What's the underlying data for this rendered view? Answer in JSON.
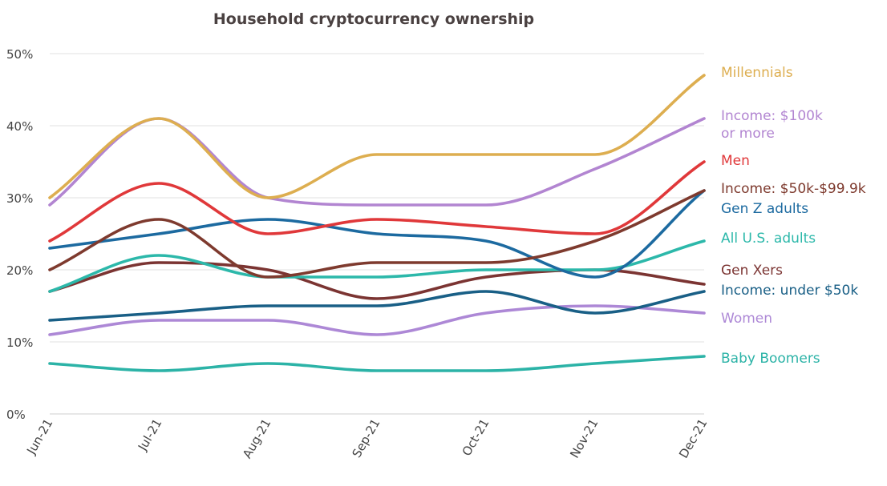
{
  "chart_data": {
    "type": "line",
    "title": "Household cryptocurrency ownership",
    "xlabel": "",
    "ylabel": "",
    "categories": [
      "Jun-21",
      "Jul-21",
      "Aug-21",
      "Sep-21",
      "Oct-21",
      "Nov-21",
      "Dec-21"
    ],
    "y_ticks": [
      "0%",
      "10%",
      "20%",
      "30%",
      "40%",
      "50%"
    ],
    "ylim": [
      0,
      50
    ],
    "grid": true,
    "legend": "right, direct labels at line ends",
    "series": [
      {
        "name": "Baby Boomers",
        "values": [
          7,
          6,
          7,
          6,
          6,
          7,
          8
        ],
        "color": "#2cb3a7",
        "label_lines": [
          "Baby Boomers"
        ]
      },
      {
        "name": "Women",
        "values": [
          11,
          13,
          13,
          11,
          14,
          15,
          14
        ],
        "color": "#ad88d6",
        "label_lines": [
          "Women"
        ]
      },
      {
        "name": "Income: under $50k",
        "values": [
          13,
          14,
          15,
          15,
          17,
          14,
          17
        ],
        "color": "#195f86",
        "label_lines": [
          "Income: under $50k"
        ]
      },
      {
        "name": "Gen Xers",
        "values": [
          17,
          21,
          20,
          16,
          19,
          20,
          18
        ],
        "color": "#7b3432",
        "label_lines": [
          "Gen Xers"
        ]
      },
      {
        "name": "All U.S. adults",
        "values": [
          17,
          22,
          19,
          19,
          20,
          20,
          24
        ],
        "color": "#2cb8aa",
        "label_lines": [
          "All U.S. adults"
        ]
      },
      {
        "name": "Gen Z adults",
        "values": [
          23,
          25,
          27,
          25,
          24,
          19,
          31
        ],
        "color": "#1c6aa0",
        "label_lines": [
          "Gen Z adults"
        ]
      },
      {
        "name": "Income: $50k-$99.9k",
        "values": [
          20,
          27,
          19,
          21,
          21,
          24,
          31
        ],
        "color": "#7e3a2e",
        "label_lines": [
          "Income: $50k-$99.9k"
        ]
      },
      {
        "name": "Men",
        "values": [
          24,
          32,
          25,
          27,
          26,
          25,
          35
        ],
        "color": "#e0383a",
        "label_lines": [
          "Men"
        ]
      },
      {
        "name": "Income: $100k or more",
        "values": [
          29,
          41,
          30,
          29,
          29,
          34,
          41
        ],
        "color": "#b285d1",
        "label_lines": [
          "Income: $100k",
          "or more"
        ]
      },
      {
        "name": "Millennials",
        "values": [
          30,
          41,
          30,
          36,
          36,
          36,
          47
        ],
        "color": "#ddae50",
        "label_lines": [
          "Millennials"
        ]
      }
    ]
  }
}
